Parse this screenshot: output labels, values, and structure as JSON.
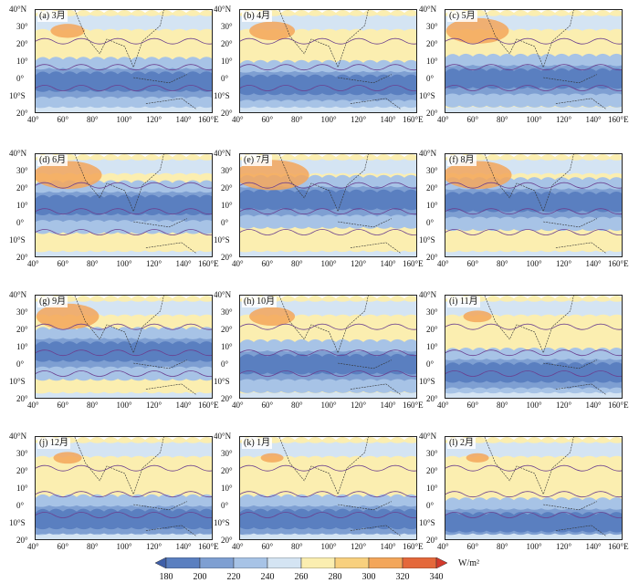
{
  "panels": [
    {
      "label": "(a) 3月"
    },
    {
      "label": "(b) 4月"
    },
    {
      "label": "(c) 5月"
    },
    {
      "label": "(d) 6月"
    },
    {
      "label": "(e) 7月"
    },
    {
      "label": "(f) 8月"
    },
    {
      "label": "(g) 9月"
    },
    {
      "label": "(h) 10月"
    },
    {
      "label": "(i) 11月"
    },
    {
      "label": "(j) 12月"
    },
    {
      "label": "(k) 1月"
    },
    {
      "label": "(l) 2月"
    }
  ],
  "lat_ticks": [
    "40°N",
    "30°",
    "20°",
    "10°",
    "0°",
    "10°S",
    "20°"
  ],
  "lon_ticks": [
    "40°",
    "60°",
    "80°",
    "100°",
    "120°",
    "140°",
    "160°E"
  ],
  "colorbar": {
    "ticks": [
      "180",
      "200",
      "220",
      "240",
      "260",
      "280",
      "300",
      "320",
      "340"
    ],
    "unit": "W/m²",
    "colors": [
      "#3f5fa8",
      "#5a7fc0",
      "#7e9fd2",
      "#a7c3e6",
      "#d4e4f3",
      "#fbeeb0",
      "#f8d07e",
      "#f3a65a",
      "#e4683b",
      "#d33a2c"
    ]
  }
}
